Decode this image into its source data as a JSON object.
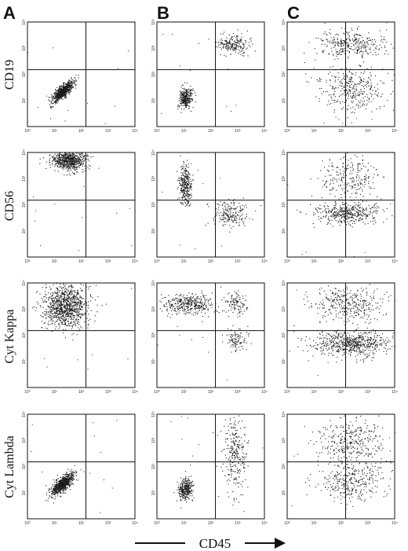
{
  "figure": {
    "column_labels": [
      "A",
      "B",
      "C"
    ],
    "row_labels": [
      "CD19",
      "CD56",
      "Cyt Kappa",
      "Cyt Lambda"
    ],
    "x_axis_label": "CD45",
    "tick_labels": [
      "10⁰",
      "10¹",
      "10²",
      "10³",
      "10⁴"
    ]
  },
  "colors": {
    "ink": "#111111",
    "dots": "#1a1a1a"
  },
  "chart_data": {
    "type": "scatter",
    "xlabel": "CD45",
    "x_scale": "log",
    "y_scale": "log",
    "xlim": [
      1,
      10000
    ],
    "ylim": [
      1,
      10000
    ],
    "quadrant_gate": {
      "x": 150,
      "y": 150
    },
    "panels": [
      {
        "column": "A",
        "row": "CD19",
        "clusters": [
          {
            "cx": 1.3,
            "cy": 1.35,
            "sx": 0.2,
            "sy": 0.2,
            "rho": 0.8,
            "n": 750
          }
        ]
      },
      {
        "column": "B",
        "row": "CD19",
        "clusters": [
          {
            "cx": 1.05,
            "cy": 1.1,
            "sx": 0.12,
            "sy": 0.2,
            "rho": 0.2,
            "n": 320
          },
          {
            "cx": 2.85,
            "cy": 3.15,
            "sx": 0.3,
            "sy": 0.2,
            "rho": 0.0,
            "n": 220
          }
        ]
      },
      {
        "column": "C",
        "row": "CD19",
        "clusters": [
          {
            "cx": 2.4,
            "cy": 3.15,
            "sx": 0.65,
            "sy": 0.25,
            "rho": 0.0,
            "n": 320
          },
          {
            "cx": 2.4,
            "cy": 1.45,
            "sx": 0.65,
            "sy": 0.45,
            "rho": 0.0,
            "n": 350
          }
        ]
      },
      {
        "column": "A",
        "row": "CD56",
        "clusters": [
          {
            "cx": 1.55,
            "cy": 3.7,
            "sx": 0.32,
            "sy": 0.18,
            "rho": -0.1,
            "n": 700
          }
        ]
      },
      {
        "column": "B",
        "row": "CD56",
        "clusters": [
          {
            "cx": 1.05,
            "cy": 2.75,
            "sx": 0.12,
            "sy": 0.35,
            "rho": 0.0,
            "n": 320
          },
          {
            "cx": 2.75,
            "cy": 1.65,
            "sx": 0.32,
            "sy": 0.25,
            "rho": 0.0,
            "n": 200
          }
        ]
      },
      {
        "column": "C",
        "row": "CD56",
        "clusters": [
          {
            "cx": 2.3,
            "cy": 3.0,
            "sx": 0.55,
            "sy": 0.45,
            "rho": 0.0,
            "n": 240
          },
          {
            "cx": 2.25,
            "cy": 1.7,
            "sx": 0.65,
            "sy": 0.2,
            "rho": 0.0,
            "n": 420
          }
        ]
      },
      {
        "column": "A",
        "row": "Cyt Kappa",
        "clusters": [
          {
            "cx": 1.4,
            "cy": 3.1,
            "sx": 0.4,
            "sy": 0.4,
            "rho": 0.0,
            "n": 1000
          }
        ]
      },
      {
        "column": "B",
        "row": "Cyt Kappa",
        "clusters": [
          {
            "cx": 1.2,
            "cy": 3.2,
            "sx": 0.45,
            "sy": 0.2,
            "rho": 0.0,
            "n": 380
          },
          {
            "cx": 2.95,
            "cy": 3.2,
            "sx": 0.2,
            "sy": 0.22,
            "rho": 0.0,
            "n": 110
          },
          {
            "cx": 2.95,
            "cy": 1.8,
            "sx": 0.18,
            "sy": 0.2,
            "rho": 0.0,
            "n": 100
          }
        ]
      },
      {
        "column": "C",
        "row": "Cyt Kappa",
        "clusters": [
          {
            "cx": 2.3,
            "cy": 3.2,
            "sx": 0.7,
            "sy": 0.35,
            "rho": 0.0,
            "n": 350
          },
          {
            "cx": 2.4,
            "cy": 1.7,
            "sx": 0.7,
            "sy": 0.25,
            "rho": 0.0,
            "n": 650
          }
        ]
      },
      {
        "column": "A",
        "row": "Cyt Lambda",
        "clusters": [
          {
            "cx": 1.3,
            "cy": 1.35,
            "sx": 0.22,
            "sy": 0.22,
            "rho": 0.75,
            "n": 750
          }
        ]
      },
      {
        "column": "B",
        "row": "Cyt Lambda",
        "clusters": [
          {
            "cx": 1.05,
            "cy": 1.15,
            "sx": 0.14,
            "sy": 0.2,
            "rho": 0.1,
            "n": 320
          },
          {
            "cx": 2.9,
            "cy": 2.5,
            "sx": 0.22,
            "sy": 0.75,
            "rho": 0.0,
            "n": 280
          }
        ]
      },
      {
        "column": "C",
        "row": "Cyt Lambda",
        "clusters": [
          {
            "cx": 2.35,
            "cy": 3.0,
            "sx": 0.6,
            "sy": 0.4,
            "rho": 0.0,
            "n": 330
          },
          {
            "cx": 2.4,
            "cy": 1.5,
            "sx": 0.6,
            "sy": 0.4,
            "rho": 0.0,
            "n": 350
          }
        ]
      }
    ]
  }
}
